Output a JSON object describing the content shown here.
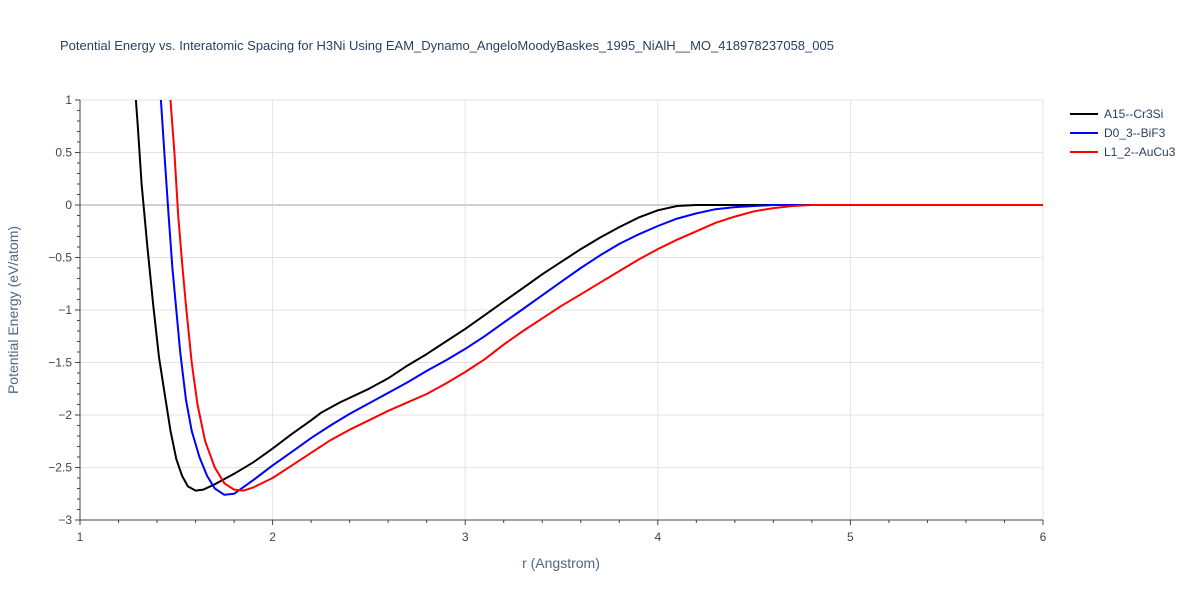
{
  "chart_data": {
    "type": "line",
    "title": "Potential Energy vs. Interatomic Spacing for H3Ni Using EAM_Dynamo_AngeloMoodyBaskes_1995_NiAlH__MO_418978237058_005",
    "xlabel": "r (Angstrom)",
    "ylabel": "Potential Energy (eV/atom)",
    "xlim": [
      1,
      6
    ],
    "ylim": [
      -3,
      1
    ],
    "xticks": [
      1,
      2,
      3,
      4,
      5,
      6
    ],
    "xtick_labels": [
      "1",
      "2",
      "3",
      "4",
      "5",
      "6"
    ],
    "yticks": [
      -3,
      -2.5,
      -2,
      -1.5,
      -1,
      -0.5,
      0,
      0.5,
      1
    ],
    "ytick_labels": [
      "−3",
      "−2.5",
      "−2",
      "−1.5",
      "−1",
      "−0.5",
      "0",
      "0.5",
      "1"
    ],
    "grid": true,
    "legend_position": "top-right",
    "series": [
      {
        "name": "A15--Cr3Si",
        "color": "#000000",
        "x": [
          1.29,
          1.3,
          1.32,
          1.35,
          1.38,
          1.41,
          1.44,
          1.47,
          1.5,
          1.53,
          1.56,
          1.6,
          1.64,
          1.7,
          1.8,
          1.9,
          2.0,
          2.1,
          2.2,
          2.25,
          2.35,
          2.5,
          2.6,
          2.7,
          2.8,
          2.9,
          3.0,
          3.1,
          3.2,
          3.3,
          3.4,
          3.5,
          3.6,
          3.7,
          3.8,
          3.9,
          4.0,
          4.1,
          4.2,
          4.3,
          4.5,
          5.0,
          6.0
        ],
        "y": [
          1.0,
          0.75,
          0.2,
          -0.4,
          -0.95,
          -1.45,
          -1.8,
          -2.15,
          -2.42,
          -2.58,
          -2.68,
          -2.72,
          -2.71,
          -2.66,
          -2.56,
          -2.45,
          -2.32,
          -2.18,
          -2.05,
          -1.98,
          -1.88,
          -1.75,
          -1.65,
          -1.53,
          -1.42,
          -1.3,
          -1.18,
          -1.05,
          -0.92,
          -0.79,
          -0.66,
          -0.54,
          -0.42,
          -0.31,
          -0.21,
          -0.12,
          -0.05,
          -0.01,
          0.0,
          0.0,
          0.0,
          0.0,
          0.0
        ]
      },
      {
        "name": "D0_3--BiF3",
        "color": "#0000ff",
        "x": [
          1.42,
          1.44,
          1.46,
          1.48,
          1.5,
          1.52,
          1.55,
          1.58,
          1.62,
          1.66,
          1.7,
          1.75,
          1.8,
          1.9,
          2.0,
          2.1,
          2.2,
          2.3,
          2.4,
          2.5,
          2.6,
          2.7,
          2.8,
          2.9,
          3.0,
          3.1,
          3.2,
          3.3,
          3.4,
          3.5,
          3.6,
          3.7,
          3.8,
          3.9,
          4.0,
          4.1,
          4.2,
          4.3,
          4.4,
          4.5,
          4.6,
          4.7,
          5.0,
          6.0
        ],
        "y": [
          1.0,
          0.45,
          -0.1,
          -0.6,
          -1.0,
          -1.4,
          -1.85,
          -2.15,
          -2.4,
          -2.58,
          -2.7,
          -2.76,
          -2.75,
          -2.62,
          -2.48,
          -2.35,
          -2.22,
          -2.1,
          -1.99,
          -1.89,
          -1.79,
          -1.69,
          -1.58,
          -1.48,
          -1.37,
          -1.25,
          -1.12,
          -0.99,
          -0.86,
          -0.73,
          -0.6,
          -0.48,
          -0.37,
          -0.28,
          -0.2,
          -0.13,
          -0.08,
          -0.04,
          -0.02,
          -0.01,
          0.0,
          0.0,
          0.0,
          0.0
        ]
      },
      {
        "name": "L1_2--AuCu3",
        "color": "#ff0000",
        "x": [
          1.47,
          1.49,
          1.51,
          1.53,
          1.55,
          1.58,
          1.61,
          1.65,
          1.7,
          1.75,
          1.8,
          1.85,
          1.9,
          2.0,
          2.1,
          2.2,
          2.3,
          2.4,
          2.5,
          2.6,
          2.7,
          2.8,
          2.9,
          3.0,
          3.1,
          3.2,
          3.3,
          3.4,
          3.5,
          3.6,
          3.7,
          3.8,
          3.9,
          4.0,
          4.1,
          4.2,
          4.3,
          4.4,
          4.5,
          4.6,
          4.7,
          4.8,
          5.0,
          6.0
        ],
        "y": [
          1.0,
          0.5,
          -0.1,
          -0.55,
          -0.95,
          -1.5,
          -1.9,
          -2.25,
          -2.5,
          -2.65,
          -2.71,
          -2.72,
          -2.69,
          -2.6,
          -2.48,
          -2.36,
          -2.24,
          -2.14,
          -2.05,
          -1.96,
          -1.88,
          -1.8,
          -1.7,
          -1.59,
          -1.47,
          -1.33,
          -1.2,
          -1.08,
          -0.96,
          -0.85,
          -0.74,
          -0.63,
          -0.52,
          -0.42,
          -0.33,
          -0.25,
          -0.17,
          -0.11,
          -0.06,
          -0.03,
          -0.01,
          0.0,
          0.0,
          0.0
        ]
      }
    ]
  }
}
